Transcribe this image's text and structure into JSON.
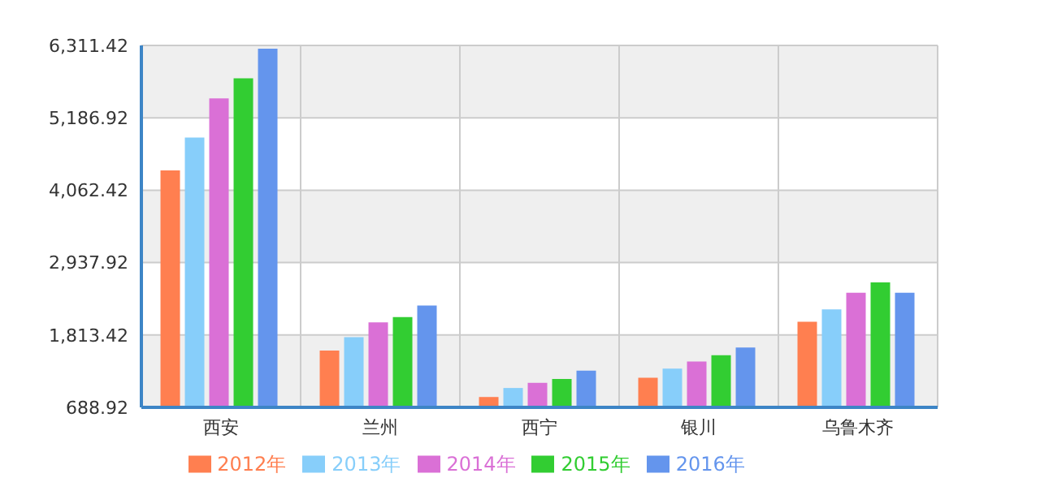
{
  "chart_data": {
    "type": "bar",
    "categories": [
      "西安",
      "兰州",
      "西宁",
      "银川",
      "乌鲁木齐"
    ],
    "series": [
      {
        "name": "2012年",
        "color": "#ff7f50",
        "values": [
          4370,
          1570,
          850,
          1150,
          2020
        ]
      },
      {
        "name": "2013年",
        "color": "#87cefa",
        "values": [
          4880,
          1780,
          990,
          1290,
          2210
        ]
      },
      {
        "name": "2014年",
        "color": "#da70d6",
        "values": [
          5490,
          2010,
          1070,
          1400,
          2470
        ]
      },
      {
        "name": "2015年",
        "color": "#32cd32",
        "values": [
          5800,
          2090,
          1130,
          1500,
          2630
        ]
      },
      {
        "name": "2016年",
        "color": "#6495ed",
        "values": [
          6260,
          2270,
          1260,
          1620,
          2470
        ]
      }
    ],
    "ylim": [
      688.92,
      6311.42
    ],
    "yticks": [
      {
        "value": 688.92,
        "label": "688.92"
      },
      {
        "value": 1813.42,
        "label": "1,813.42"
      },
      {
        "value": 2937.92,
        "label": "2,937.92"
      },
      {
        "value": 4062.42,
        "label": "4,062.42"
      },
      {
        "value": 5186.92,
        "label": "5,186.92"
      },
      {
        "value": 6311.42,
        "label": "6,311.42"
      }
    ],
    "grid": true,
    "legend": "bottom"
  }
}
